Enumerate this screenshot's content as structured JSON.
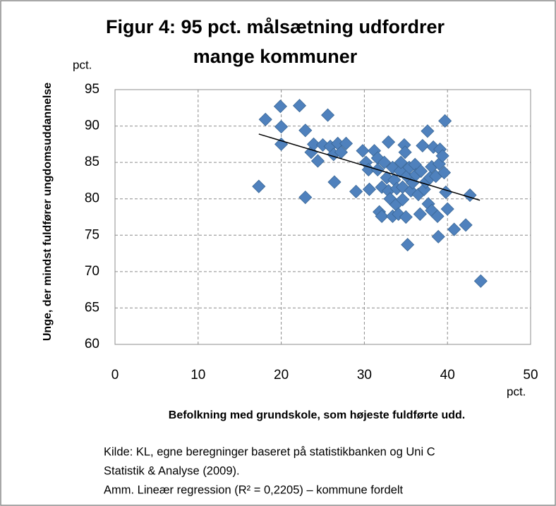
{
  "chart_data": {
    "type": "scatter",
    "title": [
      "Figur 4: 95 pct. målsætning udfordrer",
      "mange kommuner"
    ],
    "y_unit": "pct.",
    "x_unit": "pct.",
    "xlabel": "Befolkning med grundskole, som højeste fuldførte udd.",
    "ylabel": "Unge, der mindst fuldfører ungdomsuddannelse",
    "notes": [
      "Kilde: KL, egne beregninger baseret på statistikbanken og  Uni C",
      "Statistik & Analyse (2009).",
      "Amm. Lineær regression (R² = 0,2205) – kommune fordelt"
    ],
    "xlim": [
      0,
      50
    ],
    "xticks": [
      0,
      10,
      20,
      30,
      40,
      50
    ],
    "ylim": [
      60,
      95
    ],
    "yticks": [
      60,
      65,
      70,
      75,
      80,
      85,
      90,
      95
    ],
    "grid": true,
    "color": "#4f81bd",
    "x": [
      17.3,
      18.1,
      19.9,
      20.0,
      20.0,
      22.2,
      22.9,
      22.9,
      23.6,
      23.9,
      24.4,
      25.0,
      25.6,
      25.9,
      26.3,
      26.4,
      26.8,
      27.2,
      27.8,
      29.0,
      29.8,
      30.2,
      30.5,
      30.6,
      31.2,
      31.6,
      31.6,
      31.8,
      32.1,
      32.1,
      32.4,
      32.7,
      32.9,
      32.9,
      33.1,
      33.4,
      33.4,
      33.6,
      33.8,
      33.9,
      34.1,
      34.3,
      34.4,
      34.6,
      34.6,
      34.8,
      34.9,
      35.0,
      35.1,
      35.2,
      35.4,
      35.6,
      35.8,
      36.1,
      36.2,
      36.5,
      36.7,
      36.8,
      37.0,
      37.2,
      37.4,
      37.6,
      37.7,
      37.9,
      38.1,
      38.1,
      38.3,
      38.6,
      38.8,
      38.9,
      39.0,
      39.1,
      39.4,
      39.6,
      39.7,
      39.8,
      40.0,
      40.8,
      42.2,
      42.7,
      44.0
    ],
    "y": [
      81.7,
      90.9,
      92.7,
      89.9,
      87.5,
      92.8,
      89.4,
      80.2,
      86.4,
      87.5,
      85.2,
      87.4,
      91.5,
      87.2,
      86.1,
      82.3,
      87.6,
      86.4,
      87.6,
      81.0,
      86.6,
      85.0,
      84.0,
      81.3,
      86.6,
      85.6,
      84.0,
      78.2,
      77.6,
      81.6,
      85.0,
      82.9,
      87.8,
      81.1,
      80.0,
      77.6,
      84.3,
      82.6,
      79.2,
      81.4,
      77.9,
      83.8,
      85.0,
      81.6,
      79.9,
      87.4,
      86.4,
      77.5,
      83.1,
      73.7,
      84.3,
      81.1,
      82.2,
      84.7,
      83.3,
      80.6,
      77.9,
      83.8,
      87.3,
      81.3,
      82.3,
      89.3,
      79.3,
      82.9,
      84.4,
      78.4,
      87.1,
      83.1,
      77.6,
      74.8,
      84.8,
      86.8,
      85.9,
      83.6,
      90.7,
      80.9,
      78.6,
      75.8,
      76.4,
      80.5,
      68.7
    ],
    "trendline": {
      "x": [
        17.3,
        43.9
      ],
      "y": [
        88.9,
        79.8
      ],
      "color": "#000000"
    }
  }
}
